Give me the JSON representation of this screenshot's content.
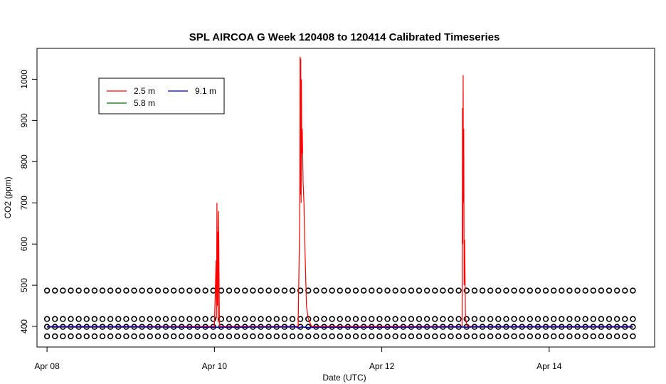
{
  "chart_data": {
    "type": "line",
    "title": "SPL AIRCOA G  Week 120408 to 120414  Calibrated Timeseries",
    "xlabel": "Date (UTC)",
    "ylabel": "CO2 (ppm)",
    "xlim": [
      -0.06,
      3.63
    ],
    "ylim": [
      350,
      1075
    ],
    "x_ticks": [
      {
        "value": 0,
        "label": "Apr 08"
      },
      {
        "value": 1,
        "label": "Apr 10"
      },
      {
        "value": 2,
        "label": "Apr 12"
      },
      {
        "value": 3,
        "label": "Apr 14"
      }
    ],
    "y_ticks": [
      400,
      500,
      600,
      700,
      800,
      900,
      1000
    ],
    "grid": false,
    "legend": {
      "position": "top-left",
      "entries": [
        {
          "label": "2.5 m",
          "color": "#ff0000"
        },
        {
          "label": "9.1 m",
          "color": "#0000cc"
        },
        {
          "label": "5.8 m",
          "color": "#006600"
        }
      ]
    },
    "series": [
      {
        "name": "2.5 m",
        "color": "#ff0000",
        "x": [
          0.0,
          1.0,
          1.01,
          1.012,
          1.015,
          1.018,
          1.02,
          1.022,
          1.025,
          1.03,
          1.5,
          1.51,
          1.512,
          1.514,
          1.516,
          1.518,
          1.52,
          1.522,
          1.525,
          1.53,
          1.535,
          1.54,
          1.55,
          1.56,
          1.57,
          1.58,
          1.59,
          2.4,
          2.48,
          2.482,
          2.484,
          2.486,
          2.488,
          2.49,
          2.492,
          2.495,
          2.5,
          2.51,
          3.5
        ],
        "y": [
          400,
          400,
          560,
          420,
          700,
          450,
          630,
          410,
          680,
          400,
          400,
          670,
          1055,
          720,
          1050,
          700,
          1000,
          820,
          880,
          750,
          700,
          600,
          450,
          420,
          410,
          400,
          400,
          400,
          400,
          930,
          600,
          1010,
          700,
          880,
          500,
          610,
          420,
          400,
          400
        ]
      },
      {
        "name": "9.1 m",
        "color": "#0000cc",
        "x": [
          0.0,
          0.5,
          1.0,
          1.49,
          1.5,
          1.52,
          1.54,
          1.56,
          1.6,
          2.0,
          2.48,
          2.5,
          2.55,
          3.0,
          3.5
        ],
        "y": [
          399,
          399,
          398,
          399,
          396,
          399,
          398,
          397,
          398,
          398,
          399,
          398,
          399,
          399,
          399
        ]
      },
      {
        "name": "5.8 m",
        "color": "#006600",
        "x": [
          0.0,
          1.0,
          2.0,
          3.0,
          3.5
        ],
        "y": [
          398,
          398,
          398,
          398,
          398
        ]
      },
      {
        "name": "",
        "color": "#000000",
        "marker": "open-circle",
        "x_start": 0.0,
        "x_end": 3.5,
        "levels": [
          487,
          418,
          399,
          376
        ]
      }
    ]
  }
}
